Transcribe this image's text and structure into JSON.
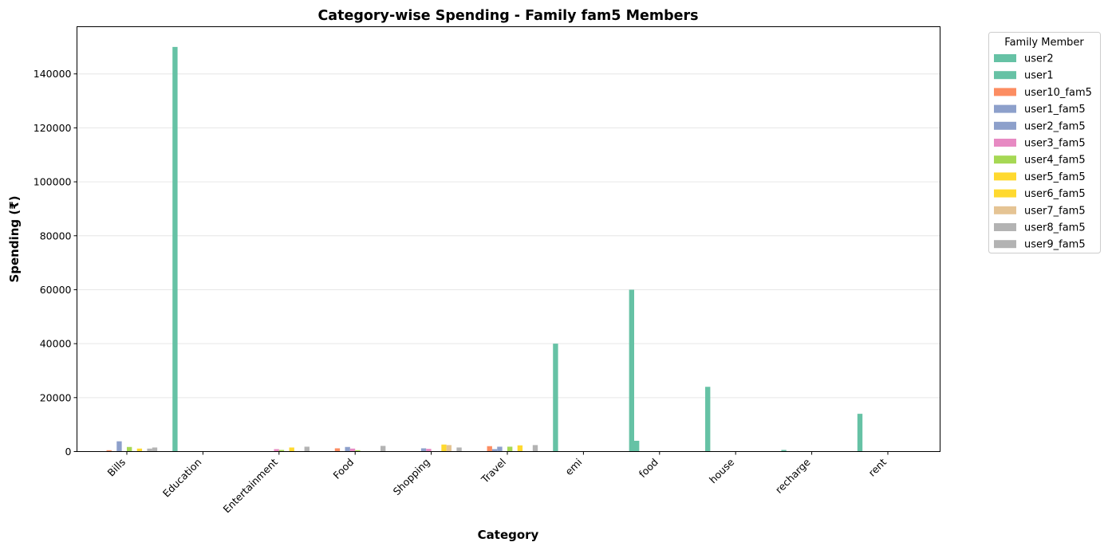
{
  "chart_data": {
    "type": "bar",
    "title": "Category-wise Spending - Family fam5 Members",
    "xlabel": "Category",
    "ylabel": "Spending (₹)",
    "ylim": [
      0,
      157500
    ],
    "yticks": [
      0,
      20000,
      40000,
      60000,
      80000,
      100000,
      120000,
      140000
    ],
    "grid": "y",
    "legend_title": "Family Member",
    "legend_position": "outside-right",
    "categories": [
      "Bills",
      "Education",
      "Entertainment",
      "Food",
      "Shopping",
      "Travel",
      "emi",
      "food",
      "house",
      "recharge",
      "rent"
    ],
    "series": [
      {
        "name": "user2",
        "color": "#66c2a5",
        "values": [
          0,
          150000,
          0,
          0,
          0,
          0,
          40000,
          60000,
          24000,
          600,
          14000
        ]
      },
      {
        "name": "user1",
        "color": "#66c2a5",
        "values": [
          0,
          0,
          0,
          0,
          0,
          0,
          0,
          4000,
          0,
          0,
          0
        ]
      },
      {
        "name": "user10_fam5",
        "color": "#fc8d62",
        "values": [
          500,
          0,
          0,
          1200,
          0,
          2000,
          0,
          0,
          0,
          0,
          0
        ]
      },
      {
        "name": "user1_fam5",
        "color": "#8da0cb",
        "values": [
          0,
          0,
          0,
          0,
          0,
          900,
          0,
          0,
          0,
          0,
          0
        ]
      },
      {
        "name": "user2_fam5",
        "color": "#8da0cb",
        "values": [
          3800,
          0,
          0,
          1700,
          1200,
          1800,
          0,
          0,
          0,
          0,
          0
        ]
      },
      {
        "name": "user3_fam5",
        "color": "#e78ac3",
        "values": [
          0,
          0,
          900,
          1100,
          1000,
          0,
          0,
          0,
          0,
          0,
          0
        ]
      },
      {
        "name": "user4_fam5",
        "color": "#a6d854",
        "values": [
          1700,
          0,
          600,
          500,
          0,
          1800,
          0,
          0,
          0,
          0,
          0
        ]
      },
      {
        "name": "user5_fam5",
        "color": "#ffd92f",
        "values": [
          0,
          0,
          0,
          0,
          0,
          0,
          0,
          0,
          0,
          0,
          0
        ]
      },
      {
        "name": "user6_fam5",
        "color": "#ffd92f",
        "values": [
          1100,
          0,
          1500,
          0,
          2600,
          2300,
          0,
          0,
          0,
          0,
          0
        ]
      },
      {
        "name": "user7_fam5",
        "color": "#e5c494",
        "values": [
          0,
          0,
          0,
          0,
          2400,
          0,
          0,
          0,
          0,
          0,
          0
        ]
      },
      {
        "name": "user8_fam5",
        "color": "#b3b3b3",
        "values": [
          1100,
          0,
          0,
          0,
          0,
          0,
          0,
          0,
          0,
          0,
          0
        ]
      },
      {
        "name": "user9_fam5",
        "color": "#b3b3b3",
        "values": [
          1500,
          0,
          1800,
          2100,
          1500,
          2400,
          0,
          0,
          0,
          0,
          0
        ]
      }
    ]
  }
}
